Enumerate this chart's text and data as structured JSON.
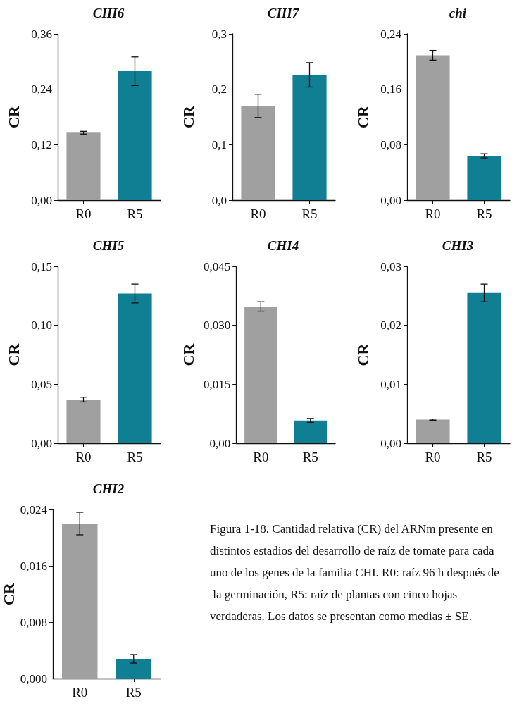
{
  "chart_data": [
    {
      "type": "bar",
      "title": "CHI6",
      "ylabel": "CR",
      "categories": [
        "R0",
        "R5"
      ],
      "values": [
        0.146,
        0.279
      ],
      "errors": [
        0.003,
        0.031
      ],
      "colors": [
        "#a0a0a0",
        "#117f93"
      ],
      "ylim": [
        0,
        0.36
      ],
      "yticks": [
        {
          "value": 0,
          "label": "0,00"
        },
        {
          "value": 0.12,
          "label": "0,12"
        },
        {
          "value": 0.24,
          "label": "0,24"
        },
        {
          "value": 0.36,
          "label": "0,36"
        }
      ]
    },
    {
      "type": "bar",
      "title": "CHI7",
      "ylabel": "CR",
      "categories": [
        "R0",
        "R5"
      ],
      "values": [
        0.17,
        0.226
      ],
      "errors": [
        0.021,
        0.022
      ],
      "colors": [
        "#a0a0a0",
        "#117f93"
      ],
      "ylim": [
        0,
        0.3
      ],
      "yticks": [
        {
          "value": 0,
          "label": "0,0"
        },
        {
          "value": 0.1,
          "label": "0,1"
        },
        {
          "value": 0.2,
          "label": "0,2"
        },
        {
          "value": 0.3,
          "label": "0,3"
        }
      ]
    },
    {
      "type": "bar",
      "title": "chi",
      "ylabel": "CR",
      "categories": [
        "R0",
        "R5"
      ],
      "values": [
        0.209,
        0.064
      ],
      "errors": [
        0.007,
        0.003
      ],
      "colors": [
        "#a0a0a0",
        "#117f93"
      ],
      "ylim": [
        0,
        0.24
      ],
      "yticks": [
        {
          "value": 0,
          "label": "0,00"
        },
        {
          "value": 0.08,
          "label": "0,08"
        },
        {
          "value": 0.16,
          "label": "0,16"
        },
        {
          "value": 0.24,
          "label": "0,24"
        }
      ]
    },
    {
      "type": "bar",
      "title": "CHI5",
      "ylabel": "CR",
      "categories": [
        "R0",
        "R5"
      ],
      "values": [
        0.037,
        0.127
      ],
      "errors": [
        0.002,
        0.008
      ],
      "colors": [
        "#a0a0a0",
        "#117f93"
      ],
      "ylim": [
        0,
        0.15
      ],
      "yticks": [
        {
          "value": 0,
          "label": "0,00"
        },
        {
          "value": 0.05,
          "label": "0,05"
        },
        {
          "value": 0.1,
          "label": "0,10"
        },
        {
          "value": 0.15,
          "label": "0,15"
        }
      ]
    },
    {
      "type": "bar",
      "title": "CHI4",
      "ylabel": "CR",
      "categories": [
        "R0",
        "R5"
      ],
      "values": [
        0.0348,
        0.0058
      ],
      "errors": [
        0.0012,
        0.0005
      ],
      "colors": [
        "#a0a0a0",
        "#117f93"
      ],
      "ylim": [
        0,
        0.045
      ],
      "yticks": [
        {
          "value": 0,
          "label": "0,00"
        },
        {
          "value": 0.015,
          "label": "0,015"
        },
        {
          "value": 0.03,
          "label": "0,030"
        },
        {
          "value": 0.045,
          "label": "0,045"
        }
      ]
    },
    {
      "type": "bar",
      "title": "CHI3",
      "ylabel": "CR",
      "categories": [
        "R0",
        "R5"
      ],
      "values": [
        0.004,
        0.0255
      ],
      "errors": [
        0.0001,
        0.0015
      ],
      "colors": [
        "#a0a0a0",
        "#117f93"
      ],
      "ylim": [
        0,
        0.03
      ],
      "yticks": [
        {
          "value": 0,
          "label": "0,00"
        },
        {
          "value": 0.01,
          "label": "0,01"
        },
        {
          "value": 0.02,
          "label": "0,02"
        },
        {
          "value": 0.03,
          "label": "0,03"
        }
      ]
    },
    {
      "type": "bar",
      "title": "CHI2",
      "ylabel": "CR",
      "categories": [
        "R0",
        "R5"
      ],
      "values": [
        0.022,
        0.0028
      ],
      "errors": [
        0.0016,
        0.0006
      ],
      "colors": [
        "#a0a0a0",
        "#117f93"
      ],
      "ylim": [
        0,
        0.024
      ],
      "yticks": [
        {
          "value": 0,
          "label": "0,000"
        },
        {
          "value": 0.008,
          "label": "0,008"
        },
        {
          "value": 0.016,
          "label": "0,016"
        },
        {
          "value": 0.024,
          "label": "0,024"
        }
      ],
      "annotations": [
        "Figura 1-18. Cantidad relativa (CR) del ARNm presente en distintos estadios del desarrollo de raíz de tomate para cada uno de los genes de la familia CHI. R0: raíz 96 h después de la germinación, R5: raíz de plantas con cinco hojas verdaderas. Los datos se presentan como medias ± SE."
      ]
    }
  ]
}
